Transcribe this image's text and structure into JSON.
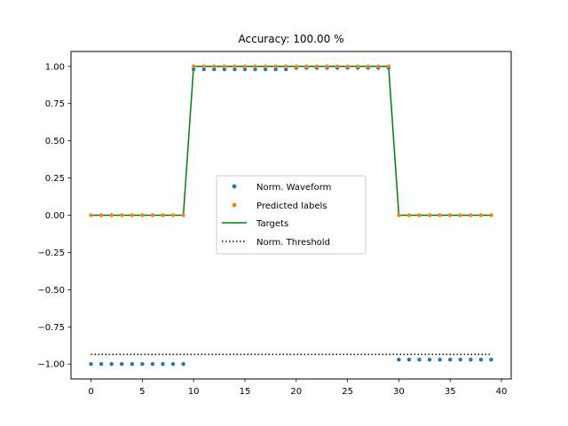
{
  "chart_data": {
    "type": "line",
    "title": "Accuracy: 100.00 %",
    "xlabel": "",
    "ylabel": "",
    "xlim": [
      -1.95,
      40.95
    ],
    "ylim": [
      -1.1,
      1.1
    ],
    "xticks": [
      0,
      5,
      10,
      15,
      20,
      25,
      30,
      35,
      40
    ],
    "xtick_labels": [
      "0",
      "5",
      "10",
      "15",
      "20",
      "25",
      "30",
      "35",
      "40"
    ],
    "yticks": [
      1.0,
      0.75,
      0.5,
      0.25,
      0.0,
      -0.25,
      -0.5,
      -0.75,
      -1.0
    ],
    "ytick_labels": [
      "1.00",
      "0.75",
      "0.50",
      "0.25",
      "0.00",
      "−0.25",
      "−0.50",
      "−0.75",
      "−1.00"
    ],
    "grid": false,
    "legend_position": "center",
    "x": [
      0,
      1,
      2,
      3,
      4,
      5,
      6,
      7,
      8,
      9,
      10,
      11,
      12,
      13,
      14,
      15,
      16,
      17,
      18,
      19,
      20,
      21,
      22,
      23,
      24,
      25,
      26,
      27,
      28,
      29,
      30,
      31,
      32,
      33,
      34,
      35,
      36,
      37,
      38,
      39
    ],
    "series": [
      {
        "name": "Norm. Waveform",
        "style": "scatter",
        "color": "#1f77b4",
        "values": [
          -1,
          -1,
          -1,
          -1,
          -1,
          -1,
          -1,
          -1,
          -1,
          -1,
          0.98,
          0.98,
          0.98,
          0.98,
          0.98,
          0.98,
          0.98,
          0.98,
          0.98,
          0.98,
          0.99,
          0.99,
          0.99,
          0.99,
          0.99,
          0.99,
          0.99,
          0.99,
          0.99,
          0.99,
          -0.97,
          -0.97,
          -0.97,
          -0.97,
          -0.97,
          -0.97,
          -0.97,
          -0.97,
          -0.97,
          -0.97
        ]
      },
      {
        "name": "Predicted labels",
        "style": "scatter",
        "color": "#ff7f0e",
        "values": [
          0,
          0,
          0,
          0,
          0,
          0,
          0,
          0,
          0,
          0,
          1,
          1,
          1,
          1,
          1,
          1,
          1,
          1,
          1,
          1,
          1,
          1,
          1,
          1,
          1,
          1,
          1,
          1,
          1,
          1,
          0,
          0,
          0,
          0,
          0,
          0,
          0,
          0,
          0,
          0
        ]
      },
      {
        "name": "Targets",
        "style": "line",
        "color": "#008000",
        "values": [
          0,
          0,
          0,
          0,
          0,
          0,
          0,
          0,
          0,
          0,
          1,
          1,
          1,
          1,
          1,
          1,
          1,
          1,
          1,
          1,
          1,
          1,
          1,
          1,
          1,
          1,
          1,
          1,
          1,
          1,
          0,
          0,
          0,
          0,
          0,
          0,
          0,
          0,
          0,
          0
        ]
      },
      {
        "name": "Norm. Threshold",
        "style": "dotted",
        "color": "#000000",
        "values": [
          -0.935,
          -0.935,
          -0.935,
          -0.935,
          -0.935,
          -0.935,
          -0.935,
          -0.935,
          -0.935,
          -0.935,
          -0.935,
          -0.935,
          -0.935,
          -0.935,
          -0.935,
          -0.935,
          -0.935,
          -0.935,
          -0.935,
          -0.935,
          -0.935,
          -0.935,
          -0.935,
          -0.935,
          -0.935,
          -0.935,
          -0.935,
          -0.935,
          -0.935,
          -0.935,
          -0.935,
          -0.935,
          -0.935,
          -0.935,
          -0.935,
          -0.935,
          -0.935,
          -0.935,
          -0.935,
          -0.935
        ]
      }
    ]
  }
}
